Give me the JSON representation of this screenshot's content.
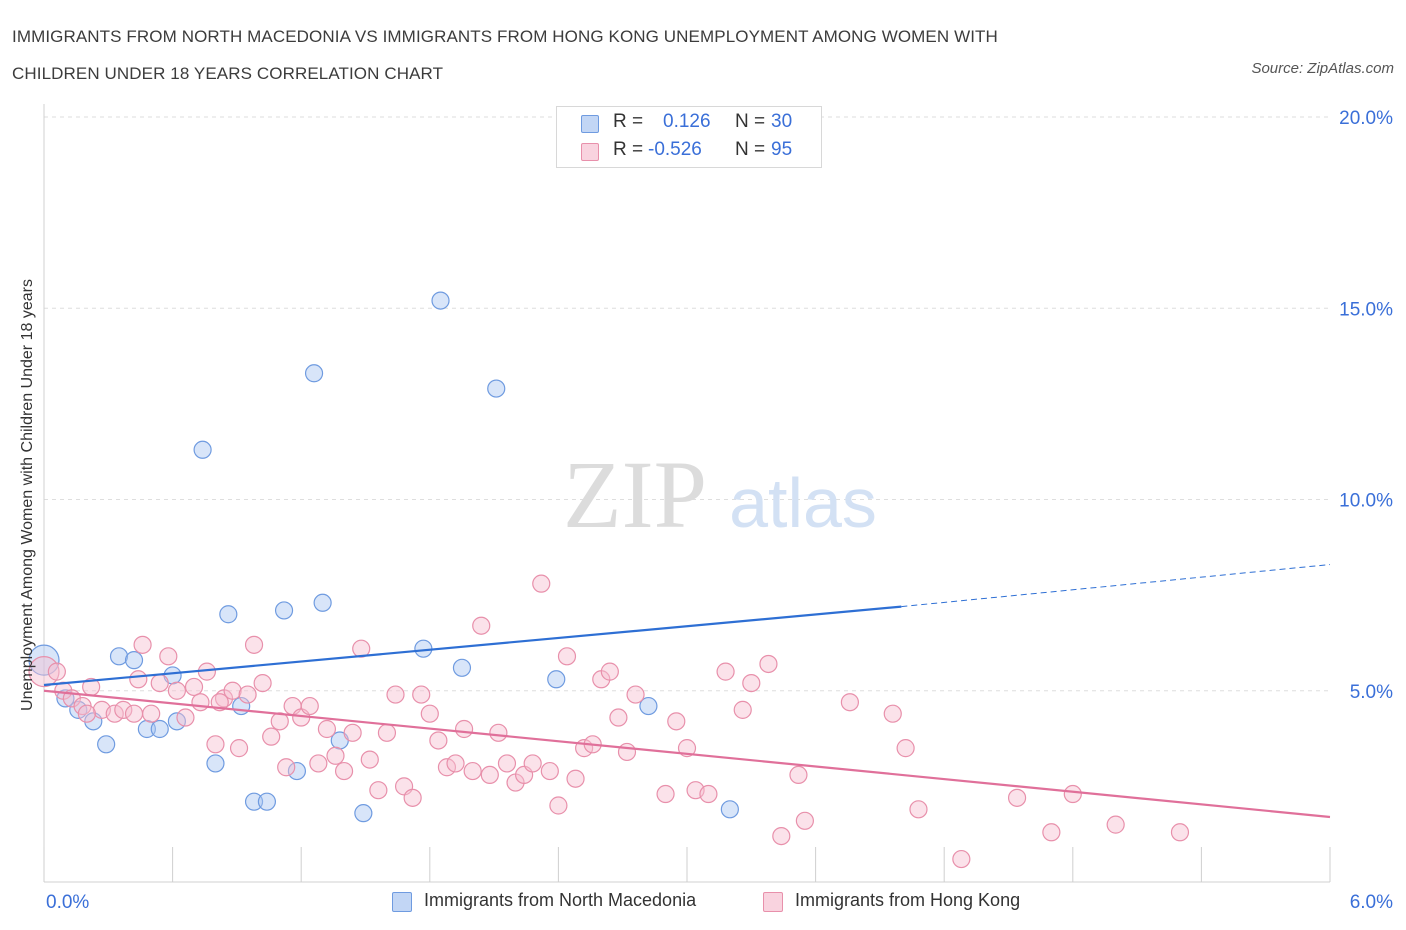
{
  "title_line1": "IMMIGRANTS FROM NORTH MACEDONIA VS IMMIGRANTS FROM HONG KONG UNEMPLOYMENT AMONG WOMEN WITH",
  "title_line2": "CHILDREN UNDER 18 YEARS CORRELATION CHART",
  "source": "Source: ZipAtlas.com",
  "watermark": {
    "zip": "ZIP",
    "atlas": "atlas"
  },
  "legend": {
    "r_label": "R =",
    "n_label": "N =",
    "rows": [
      {
        "r": "0.126",
        "n": "30",
        "color": "#a9c6f2",
        "border": "#6f9be0"
      },
      {
        "r": "-0.526",
        "n": "95",
        "color": "#f6bfd0",
        "border": "#e890ab"
      }
    ]
  },
  "chart_data": {
    "type": "scatter",
    "title": "IMMIGRANTS FROM NORTH MACEDONIA VS IMMIGRANTS FROM HONG KONG UNEMPLOYMENT AMONG WOMEN WITH CHILDREN UNDER 18 YEARS CORRELATION CHART",
    "xlabel": "",
    "ylabel": "Unemployment Among Women with Children Under 18 years",
    "xlim": [
      0,
      6
    ],
    "ylim": [
      0,
      20
    ],
    "x_tick_labels": [
      "0.0%",
      "6.0%"
    ],
    "y_tick_labels": [
      "5.0%",
      "10.0%",
      "15.0%",
      "20.0%"
    ],
    "y_ticks": [
      5,
      10,
      15,
      20
    ],
    "grid": true,
    "legend_position": "top-center",
    "series": [
      {
        "name": "Immigrants from North Macedonia",
        "color": "#a9c6f2",
        "line_color": "#2e6fd4",
        "trend": {
          "x": [
            0,
            4.0
          ],
          "y": [
            5.15,
            7.2
          ],
          "dashed_to": [
            6.0,
            8.3
          ]
        },
        "points": [
          [
            0.0,
            5.8
          ],
          [
            0.1,
            4.8
          ],
          [
            0.16,
            4.5
          ],
          [
            0.23,
            4.2
          ],
          [
            0.29,
            3.6
          ],
          [
            0.35,
            5.9
          ],
          [
            0.42,
            5.8
          ],
          [
            0.48,
            4.0
          ],
          [
            0.54,
            4.0
          ],
          [
            0.62,
            4.2
          ],
          [
            0.6,
            5.4
          ],
          [
            0.74,
            11.3
          ],
          [
            0.8,
            3.1
          ],
          [
            0.86,
            7.0
          ],
          [
            0.92,
            4.6
          ],
          [
            0.98,
            2.1
          ],
          [
            1.04,
            2.1
          ],
          [
            1.12,
            7.1
          ],
          [
            1.18,
            2.9
          ],
          [
            1.26,
            13.3
          ],
          [
            1.3,
            7.3
          ],
          [
            1.38,
            3.7
          ],
          [
            1.49,
            1.8
          ],
          [
            1.77,
            6.1
          ],
          [
            1.85,
            15.2
          ],
          [
            1.95,
            5.6
          ],
          [
            2.11,
            12.9
          ],
          [
            2.39,
            5.3
          ],
          [
            2.82,
            4.6
          ],
          [
            3.2,
            1.9
          ]
        ]
      },
      {
        "name": "Immigrants from Hong Kong",
        "color": "#f6bfd0",
        "line_color": "#e0709a",
        "trend": {
          "x": [
            0,
            6.0
          ],
          "y": [
            5.0,
            1.7
          ]
        },
        "points": [
          [
            0.0,
            5.5
          ],
          [
            0.06,
            5.5
          ],
          [
            0.09,
            5.0
          ],
          [
            0.13,
            4.8
          ],
          [
            0.18,
            4.6
          ],
          [
            0.22,
            5.1
          ],
          [
            0.27,
            4.5
          ],
          [
            0.33,
            4.4
          ],
          [
            0.37,
            4.5
          ],
          [
            0.42,
            4.4
          ],
          [
            0.46,
            6.2
          ],
          [
            0.5,
            4.4
          ],
          [
            0.54,
            5.2
          ],
          [
            0.58,
            5.9
          ],
          [
            0.62,
            5.0
          ],
          [
            0.66,
            4.3
          ],
          [
            0.7,
            5.1
          ],
          [
            0.73,
            4.7
          ],
          [
            0.76,
            5.5
          ],
          [
            0.8,
            3.6
          ],
          [
            0.84,
            4.8
          ],
          [
            0.88,
            5.0
          ],
          [
            0.91,
            3.5
          ],
          [
            0.95,
            4.9
          ],
          [
            0.98,
            6.2
          ],
          [
            1.02,
            5.2
          ],
          [
            1.06,
            3.8
          ],
          [
            1.1,
            4.2
          ],
          [
            1.13,
            3.0
          ],
          [
            1.16,
            4.6
          ],
          [
            1.2,
            4.3
          ],
          [
            1.24,
            4.6
          ],
          [
            1.28,
            3.1
          ],
          [
            1.32,
            4.0
          ],
          [
            1.36,
            3.3
          ],
          [
            1.4,
            2.9
          ],
          [
            1.44,
            3.9
          ],
          [
            1.48,
            6.1
          ],
          [
            1.52,
            3.2
          ],
          [
            1.56,
            2.4
          ],
          [
            1.6,
            3.9
          ],
          [
            1.64,
            4.9
          ],
          [
            1.68,
            2.5
          ],
          [
            1.72,
            2.2
          ],
          [
            1.76,
            4.9
          ],
          [
            1.8,
            4.4
          ],
          [
            1.84,
            3.7
          ],
          [
            1.88,
            3.0
          ],
          [
            1.92,
            3.1
          ],
          [
            1.96,
            4.0
          ],
          [
            2.0,
            2.9
          ],
          [
            2.04,
            6.7
          ],
          [
            2.08,
            2.8
          ],
          [
            2.12,
            3.9
          ],
          [
            2.16,
            3.1
          ],
          [
            2.2,
            2.6
          ],
          [
            2.24,
            2.8
          ],
          [
            2.28,
            3.1
          ],
          [
            2.32,
            7.8
          ],
          [
            2.36,
            2.9
          ],
          [
            2.4,
            2.0
          ],
          [
            2.44,
            5.9
          ],
          [
            2.48,
            2.7
          ],
          [
            2.52,
            3.5
          ],
          [
            2.56,
            3.6
          ],
          [
            2.6,
            5.3
          ],
          [
            2.64,
            5.5
          ],
          [
            2.68,
            4.3
          ],
          [
            2.72,
            3.4
          ],
          [
            2.76,
            4.9
          ],
          [
            2.9,
            2.3
          ],
          [
            2.95,
            4.2
          ],
          [
            3.0,
            3.5
          ],
          [
            3.04,
            2.4
          ],
          [
            3.1,
            2.3
          ],
          [
            3.18,
            5.5
          ],
          [
            3.26,
            4.5
          ],
          [
            3.3,
            5.2
          ],
          [
            3.38,
            5.7
          ],
          [
            3.44,
            1.2
          ],
          [
            3.52,
            2.8
          ],
          [
            3.55,
            1.6
          ],
          [
            3.76,
            4.7
          ],
          [
            3.96,
            4.4
          ],
          [
            4.02,
            3.5
          ],
          [
            4.08,
            1.9
          ],
          [
            4.28,
            0.6
          ],
          [
            4.54,
            2.2
          ],
          [
            4.7,
            1.3
          ],
          [
            4.8,
            2.3
          ],
          [
            5.0,
            1.5
          ],
          [
            5.3,
            1.3
          ],
          [
            0.2,
            4.4
          ],
          [
            0.44,
            5.3
          ],
          [
            0.82,
            4.7
          ]
        ]
      }
    ]
  },
  "bottom_legend": [
    {
      "label": "Immigrants from North Macedonia",
      "color": "#a9c6f2",
      "border": "#6f9be0"
    },
    {
      "label": "Immigrants from Hong Kong",
      "color": "#f6bfd0",
      "border": "#e890ab"
    }
  ]
}
